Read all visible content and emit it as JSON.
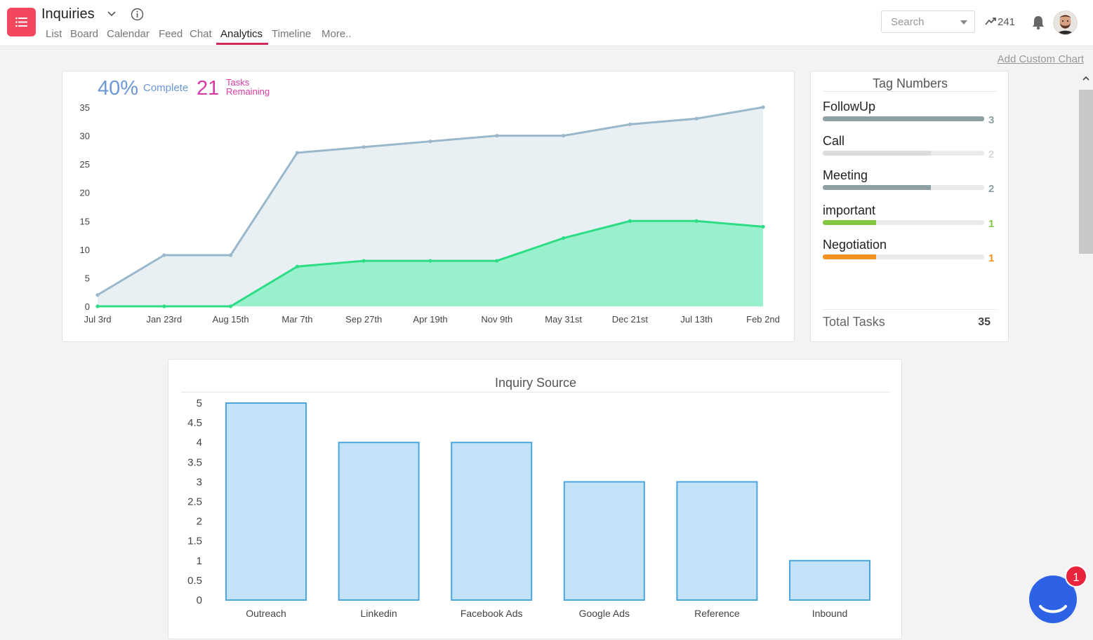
{
  "app": {
    "title": "Inquiries",
    "icon": "list-icon"
  },
  "tabs": [
    {
      "label": "List"
    },
    {
      "label": "Board"
    },
    {
      "label": "Calendar"
    },
    {
      "label": "Feed"
    },
    {
      "label": "Chat"
    },
    {
      "label": "Analytics"
    },
    {
      "label": "Timeline"
    },
    {
      "label": "More.."
    }
  ],
  "active_tab": "Analytics",
  "search": {
    "placeholder": "Search"
  },
  "trend": {
    "count": "241"
  },
  "actions": {
    "add_custom_chart": "Add Custom Chart"
  },
  "progress": {
    "percent": "40%",
    "complete_label": "Complete",
    "remaining_count": "21",
    "tasks_label": "Tasks",
    "remaining_label": "Remaining"
  },
  "tags": {
    "title": "Tag Numbers",
    "items": [
      {
        "name": "FollowUp",
        "count": "3",
        "fraction": 1.0,
        "color": "#8fa0a5",
        "count_color": "#8fa0a5"
      },
      {
        "name": "Call",
        "count": "2",
        "fraction": 0.67,
        "color": "#dcdcdc",
        "count_color": "#d6d6d6"
      },
      {
        "name": "Meeting",
        "count": "2",
        "fraction": 0.67,
        "color": "#8fa0a5",
        "count_color": "#8fa0a5"
      },
      {
        "name": "important",
        "count": "1",
        "fraction": 0.33,
        "color": "#84c63f",
        "count_color": "#84c63f"
      },
      {
        "name": "Negotiation",
        "count": "1",
        "fraction": 0.33,
        "color": "#f39220",
        "count_color": "#f39220"
      }
    ],
    "total_label": "Total Tasks",
    "total_value": "35"
  },
  "chat": {
    "badge": "1"
  },
  "chart_data": [
    {
      "type": "area",
      "title": "",
      "categories": [
        "Jul 3rd",
        "Jan 23rd",
        "Aug 15th",
        "Mar 7th",
        "Sep 27th",
        "Apr 19th",
        "Nov 9th",
        "May 31st",
        "Dec 21st",
        "Jul 13th",
        "Feb 2nd"
      ],
      "x": [
        0,
        1,
        2,
        3,
        4,
        5,
        6,
        7,
        8,
        9,
        10,
        11,
        12,
        13,
        14,
        15,
        16,
        17,
        18,
        19
      ],
      "series": [
        {
          "name": "",
          "color": "#9ab8cb",
          "values": [
            2,
            9,
            9,
            27,
            28,
            29,
            30,
            30,
            32,
            33,
            35
          ]
        },
        {
          "name": "",
          "color": "#2fdc86",
          "values": [
            0,
            0,
            0,
            7,
            8,
            8,
            8,
            12,
            15,
            15,
            14
          ]
        }
      ],
      "x_points": [
        0,
        1,
        2,
        3,
        4,
        5,
        6,
        7,
        8,
        9,
        10
      ],
      "ylim": [
        0,
        35
      ],
      "yticks": [
        0,
        5,
        10,
        15,
        20,
        25,
        30,
        35
      ],
      "grid": false
    },
    {
      "type": "bar",
      "title": "Inquiry Source",
      "categories": [
        "Outreach",
        "Linkedin",
        "Facebook Ads",
        "Google Ads",
        "Reference",
        "Inbound"
      ],
      "values": [
        5,
        4,
        4,
        3,
        3,
        1
      ],
      "ylim": [
        0,
        5
      ],
      "yticks": [
        "0",
        "0.5",
        "1",
        "1.5",
        "2",
        "2.5",
        "3",
        "3.5",
        "4",
        "4.5",
        "5"
      ],
      "bar_color": "#c3e2f8",
      "bar_border": "#4aa6dd",
      "grid": false
    }
  ]
}
